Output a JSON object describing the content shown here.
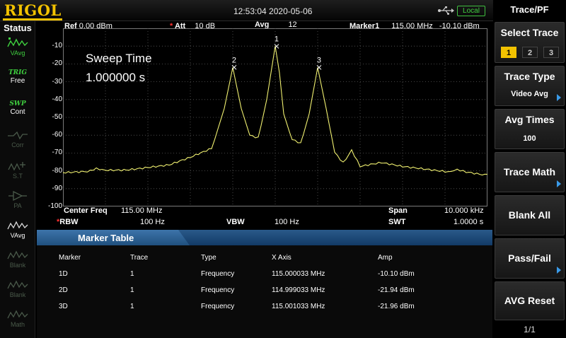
{
  "brand": "RIGOL",
  "datetime": "12:53:04 2020-05-06",
  "remote_status": "Local",
  "status_panel": {
    "title": "Status",
    "items": [
      {
        "top": "",
        "bottom": "VAvg",
        "icon": "trace-avg-icon",
        "state": "active"
      },
      {
        "top": "TRIG",
        "bottom": "Free"
      },
      {
        "top": "SWP",
        "bottom": "Cont"
      },
      {
        "top": "",
        "bottom": "Corr",
        "state": "dim"
      },
      {
        "top": "",
        "bottom": "S.T",
        "state": "dim"
      },
      {
        "top": "",
        "bottom": "PA",
        "state": "dim"
      },
      {
        "top": "",
        "bottom": "VAvg",
        "state": "active"
      },
      {
        "top": "",
        "bottom": "Blank",
        "state": "dim"
      },
      {
        "top": "",
        "bottom": "Blank",
        "state": "dim"
      },
      {
        "top": "",
        "bottom": "Math",
        "state": "dim"
      }
    ]
  },
  "display": {
    "ref_label": "Ref",
    "ref_value": "0.00 dBm",
    "att_label": "Att",
    "att_value": "10 dB",
    "avg_label": "Avg",
    "avg_value": "12",
    "marker_label": "Marker1",
    "marker_freq": "115.00 MHz",
    "marker_amp": "-10.10 dBm",
    "sweep_time_label": "Sweep Time",
    "sweep_time_value": "1.000000 s",
    "center_freq_label": "Center Freq",
    "center_freq_value": "115.00 MHz",
    "span_label": "Span",
    "span_value": "10.000 kHz",
    "rbw_label": "RBW",
    "rbw_value": "100 Hz",
    "vbw_label": "VBW",
    "vbw_value": "100 Hz",
    "swt_label": "SWT",
    "swt_value": "1.0000 s",
    "y_ticks": [
      "-10",
      "-20",
      "-30",
      "-40",
      "-50",
      "-60",
      "-70",
      "-80",
      "-90",
      "-100"
    ]
  },
  "chart_data": {
    "type": "line",
    "xlabel": "",
    "ylabel": "",
    "xlim": [
      114.995,
      115.005
    ],
    "ylim": [
      -100,
      0
    ],
    "grid": true,
    "trace_color": "#f0f070",
    "x": [
      114.995,
      114.9955,
      114.996,
      114.9965,
      114.997,
      114.9975,
      114.998,
      114.9985,
      114.9988,
      114.999,
      114.9992,
      114.9994,
      114.9996,
      114.9998,
      114.9999,
      115.0,
      115.0001,
      115.0002,
      115.0004,
      115.0006,
      115.0008,
      115.001,
      115.0012,
      115.0014,
      115.0016,
      115.0018,
      115.002,
      115.0025,
      115.003,
      115.0035,
      115.004,
      115.0045,
      115.005
    ],
    "y": [
      -81,
      -80,
      -79,
      -79,
      -78,
      -77,
      -73,
      -68,
      -45,
      -22,
      -45,
      -60,
      -62,
      -40,
      -25,
      -10,
      -25,
      -48,
      -63,
      -65,
      -48,
      -22,
      -45,
      -70,
      -75,
      -68,
      -78,
      -76,
      -78,
      -79,
      -80,
      -80,
      -82
    ],
    "markers": [
      {
        "id": "1",
        "x": 115.000033,
        "y": -10.1
      },
      {
        "id": "2",
        "x": 114.999033,
        "y": -21.94
      },
      {
        "id": "3",
        "x": 115.001033,
        "y": -21.96
      }
    ]
  },
  "marker_table": {
    "title": "Marker Table",
    "headers": [
      "Marker",
      "Trace",
      "Type",
      "X Axis",
      "Amp"
    ],
    "rows": [
      [
        "1D",
        "1",
        "Frequency",
        "115.000033 MHz",
        "-10.10 dBm"
      ],
      [
        "2D",
        "1",
        "Frequency",
        "114.999033 MHz",
        "-21.94 dBm"
      ],
      [
        "3D",
        "1",
        "Frequency",
        "115.001033 MHz",
        "-21.96 dBm"
      ]
    ]
  },
  "softkeys": {
    "menu_title": "Trace/PF",
    "select_trace_label": "Select Trace",
    "trace_options": [
      "1",
      "2",
      "3"
    ],
    "selected_trace": "1",
    "trace_type_label": "Trace Type",
    "trace_type_value": "Video Avg",
    "avg_times_label": "Avg Times",
    "avg_times_value": "100",
    "trace_math_label": "Trace Math",
    "blank_all_label": "Blank All",
    "pass_fail_label": "Pass/Fail",
    "avg_reset_label": "AVG Reset",
    "page_indicator": "1/1"
  },
  "colors": {
    "brand": "#f2c200",
    "trace": "#f0f070",
    "accent_green": "#3fd03f",
    "table_header": "#1f4f80",
    "att_star": "#ff3030"
  }
}
